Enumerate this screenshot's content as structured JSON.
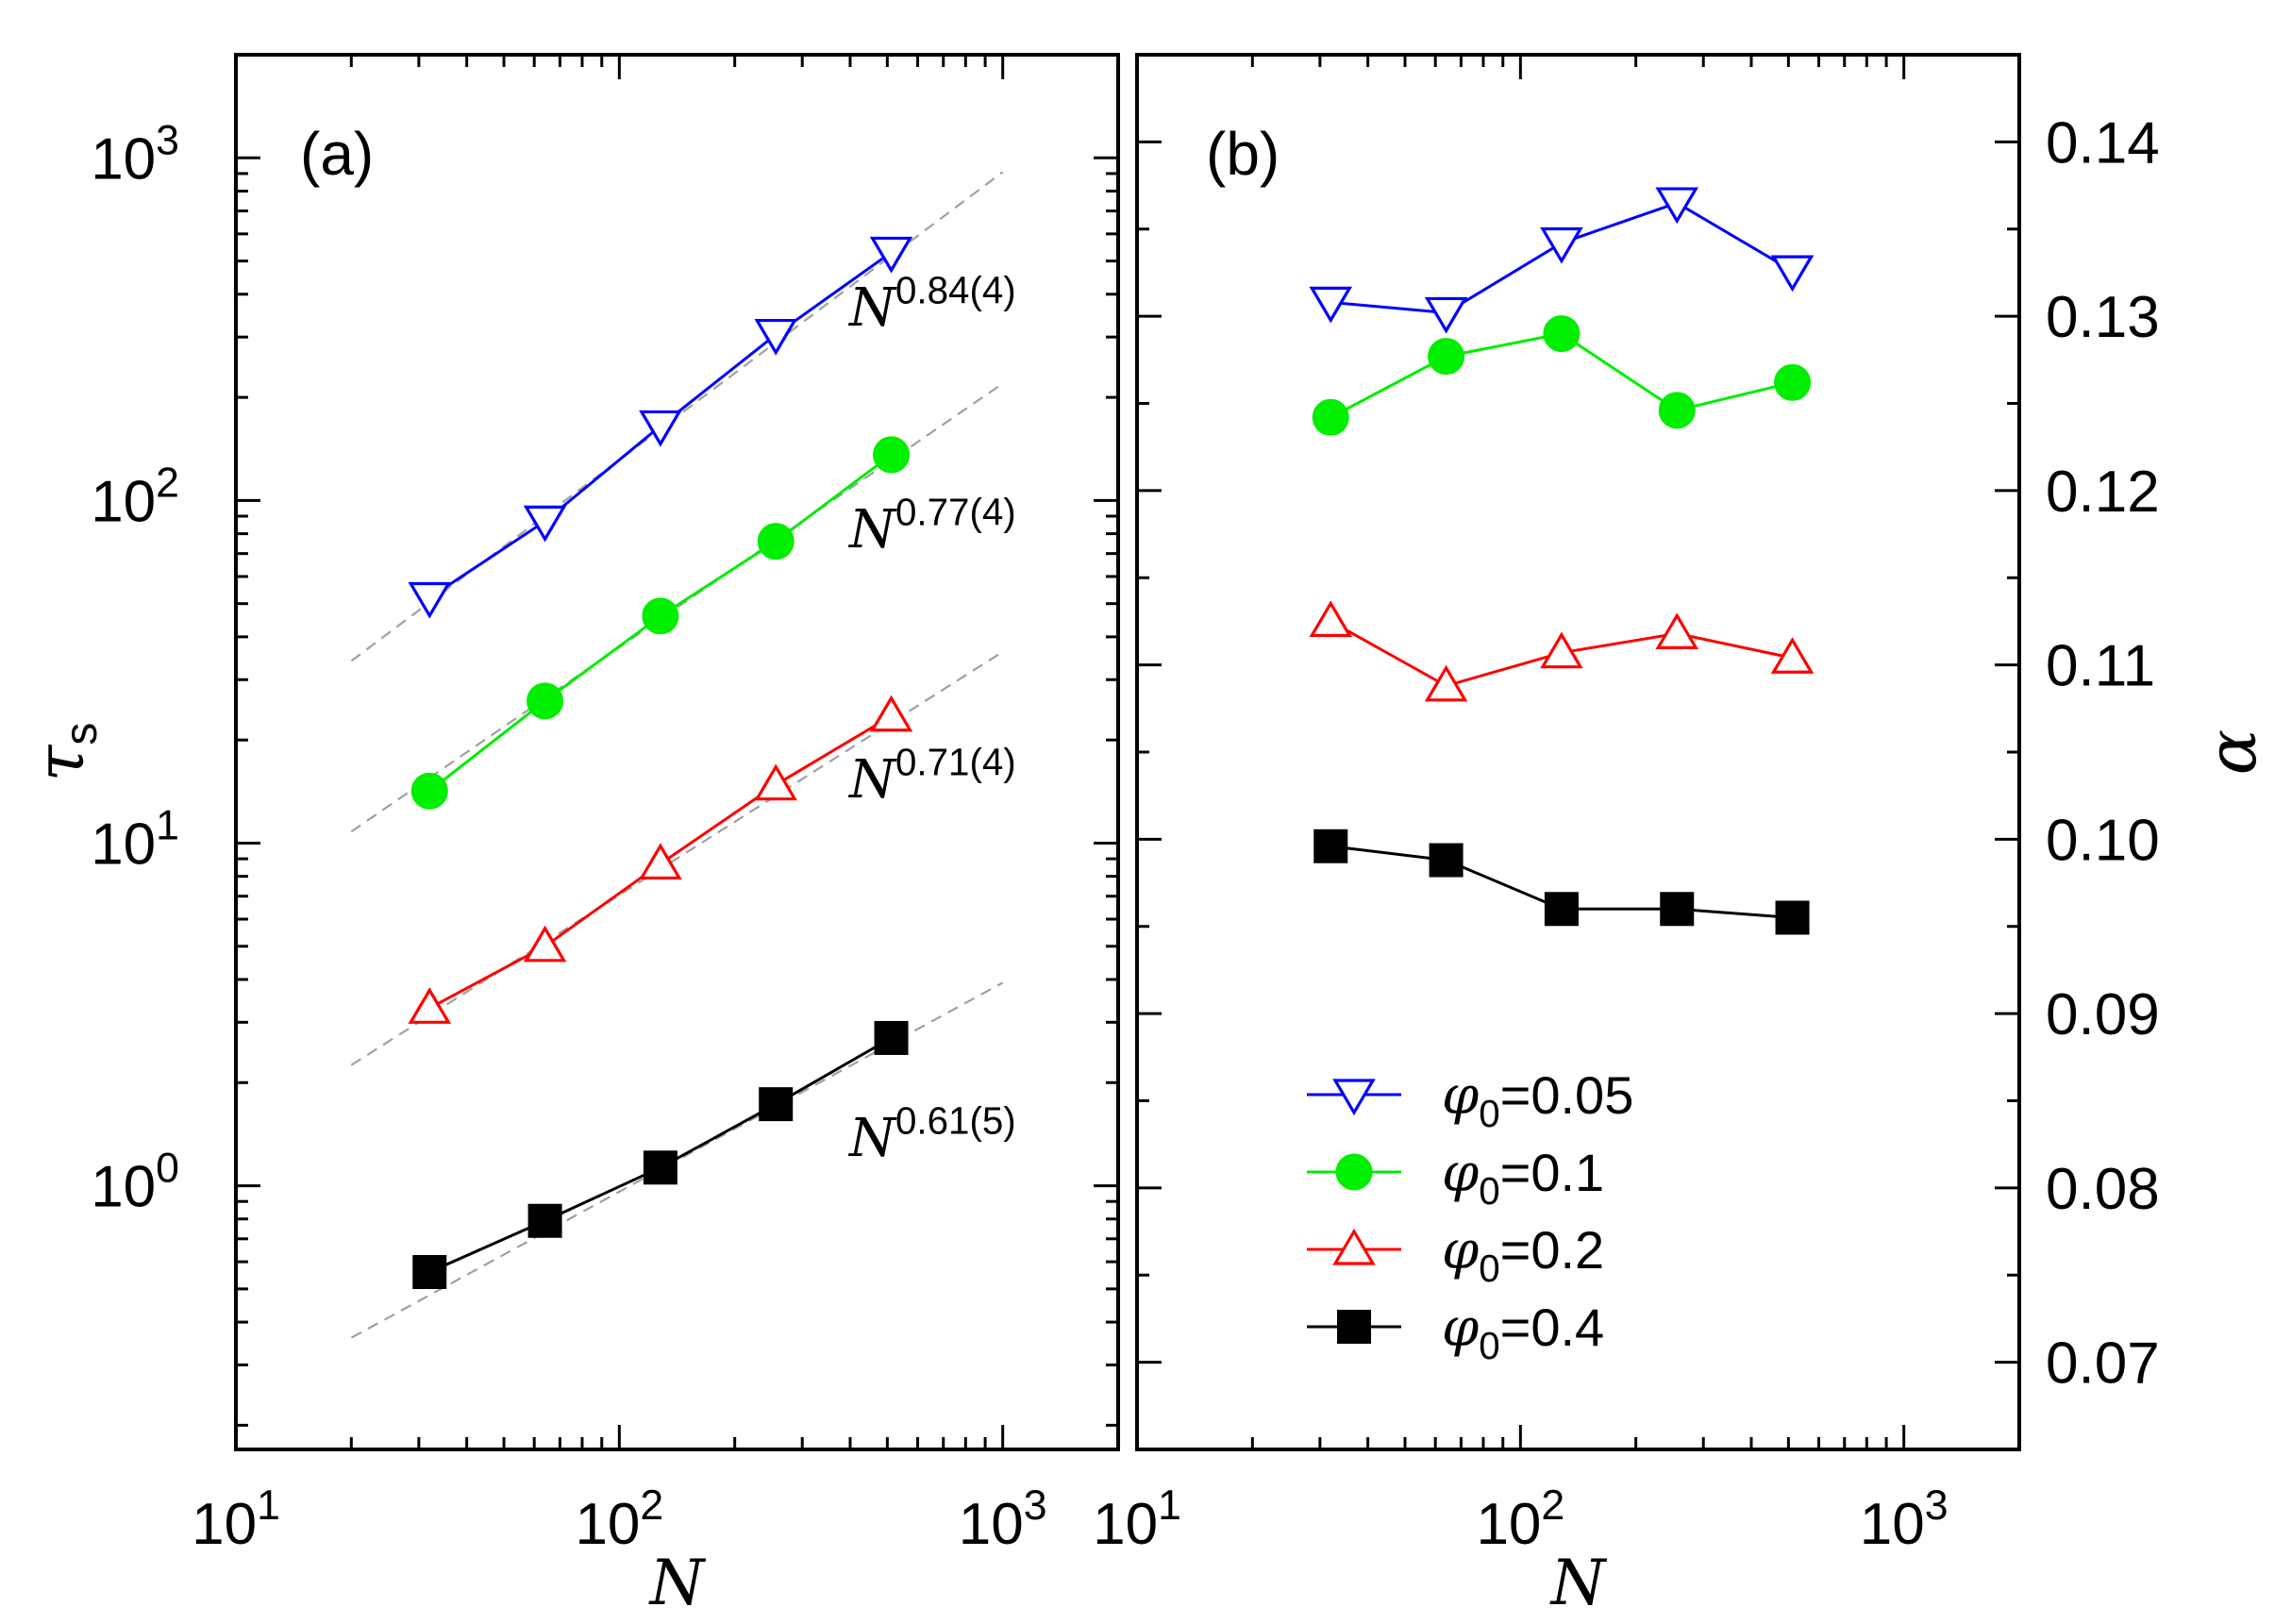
{
  "chart_data": [
    {
      "type": "line",
      "panel_label": "(a)",
      "xscale": "log",
      "yscale": "log",
      "xlim": [
        10,
        2000
      ],
      "ylim": [
        0.17,
        2000
      ],
      "xlabel": "N",
      "ylabel": "τ",
      "ylabel_sub": "s",
      "x_ticks": [
        {
          "base": "10",
          "exp": "1"
        },
        {
          "base": "10",
          "exp": "2"
        },
        {
          "base": "10",
          "exp": "3"
        }
      ],
      "y_ticks": [
        {
          "base": "10",
          "exp": "0"
        },
        {
          "base": "10",
          "exp": "1"
        },
        {
          "base": "10",
          "exp": "2"
        },
        {
          "base": "10",
          "exp": "3"
        }
      ],
      "x": [
        32,
        64,
        128,
        256,
        512
      ],
      "series": [
        {
          "name": "φ0=0.05",
          "color": "#0000ff",
          "marker": "triangle-down-open",
          "values": [
            52,
            87,
            165,
            305,
            530
          ]
        },
        {
          "name": "φ0=0.1",
          "color": "#00ee00",
          "marker": "circle-filled",
          "values": [
            14.2,
            26,
            46,
            76,
            136
          ]
        },
        {
          "name": "φ0=0.2",
          "color": "#ff0000",
          "marker": "triangle-up-open",
          "values": [
            3.3,
            5.0,
            8.7,
            14.8,
            23.5
          ]
        },
        {
          "name": "φ0=0.4",
          "color": "#000000",
          "marker": "square-filled",
          "values": [
            0.56,
            0.79,
            1.13,
            1.73,
            2.7
          ]
        }
      ],
      "fits": [
        {
          "series": "φ0=0.05",
          "base": "N",
          "exponent": "0.84(4)",
          "exponent_value": 0.84,
          "x_range": [
            20,
            1000
          ],
          "y_at_20": 34
        },
        {
          "series": "φ0=0.1",
          "base": "N",
          "exponent": "0.77(4)",
          "exponent_value": 0.77,
          "x_range": [
            20,
            1000
          ],
          "y_at_20": 10.8
        },
        {
          "series": "φ0=0.2",
          "base": "N",
          "exponent": "0.71(4)",
          "exponent_value": 0.71,
          "x_range": [
            20,
            1000
          ],
          "y_at_20": 2.25
        },
        {
          "series": "φ0=0.4",
          "base": "N",
          "exponent": "0.61(5)",
          "exponent_value": 0.61,
          "x_range": [
            20,
            1000
          ],
          "y_at_20": 0.36
        }
      ],
      "fit_line_color": "#a0a0a0"
    },
    {
      "type": "line",
      "panel_label": "(b)",
      "xscale": "log",
      "yscale": "linear",
      "xlim": [
        10,
        2000
      ],
      "ylim": [
        0.065,
        0.145
      ],
      "xlabel": "N",
      "ylabel": "α",
      "y_axis_side": "right",
      "x_ticks": [
        {
          "base": "10",
          "exp": "1"
        },
        {
          "base": "10",
          "exp": "2"
        },
        {
          "base": "10",
          "exp": "3"
        }
      ],
      "y_ticks": [
        "0.07",
        "0.08",
        "0.09",
        "0.10",
        "0.11",
        "0.12",
        "0.13",
        "0.14"
      ],
      "x": [
        32,
        64,
        128,
        256,
        512
      ],
      "series": [
        {
          "name": "φ0=0.05",
          "color": "#0000ff",
          "marker": "triangle-down-open",
          "values": [
            0.1308,
            0.1302,
            0.1342,
            0.1365,
            0.1326
          ]
        },
        {
          "name": "φ0=0.1",
          "color": "#00ee00",
          "marker": "circle-filled",
          "values": [
            0.1242,
            0.1277,
            0.129,
            0.1246,
            0.1262
          ]
        },
        {
          "name": "φ0=0.2",
          "color": "#ff0000",
          "marker": "triangle-up-open",
          "values": [
            0.1125,
            0.1088,
            0.1107,
            0.1118,
            0.1104
          ]
        },
        {
          "name": "φ0=0.4",
          "color": "#000000",
          "marker": "square-filled",
          "values": [
            0.0996,
            0.0988,
            0.096,
            0.096,
            0.0955
          ]
        }
      ],
      "legend": {
        "placement": "lower-left",
        "entries": [
          {
            "symbol": "φ",
            "sub": "0",
            "value": "=0.05"
          },
          {
            "symbol": "φ",
            "sub": "0",
            "value": "=0.1"
          },
          {
            "symbol": "φ",
            "sub": "0",
            "value": "=0.2"
          },
          {
            "symbol": "φ",
            "sub": "0",
            "value": "=0.4"
          }
        ]
      }
    }
  ]
}
